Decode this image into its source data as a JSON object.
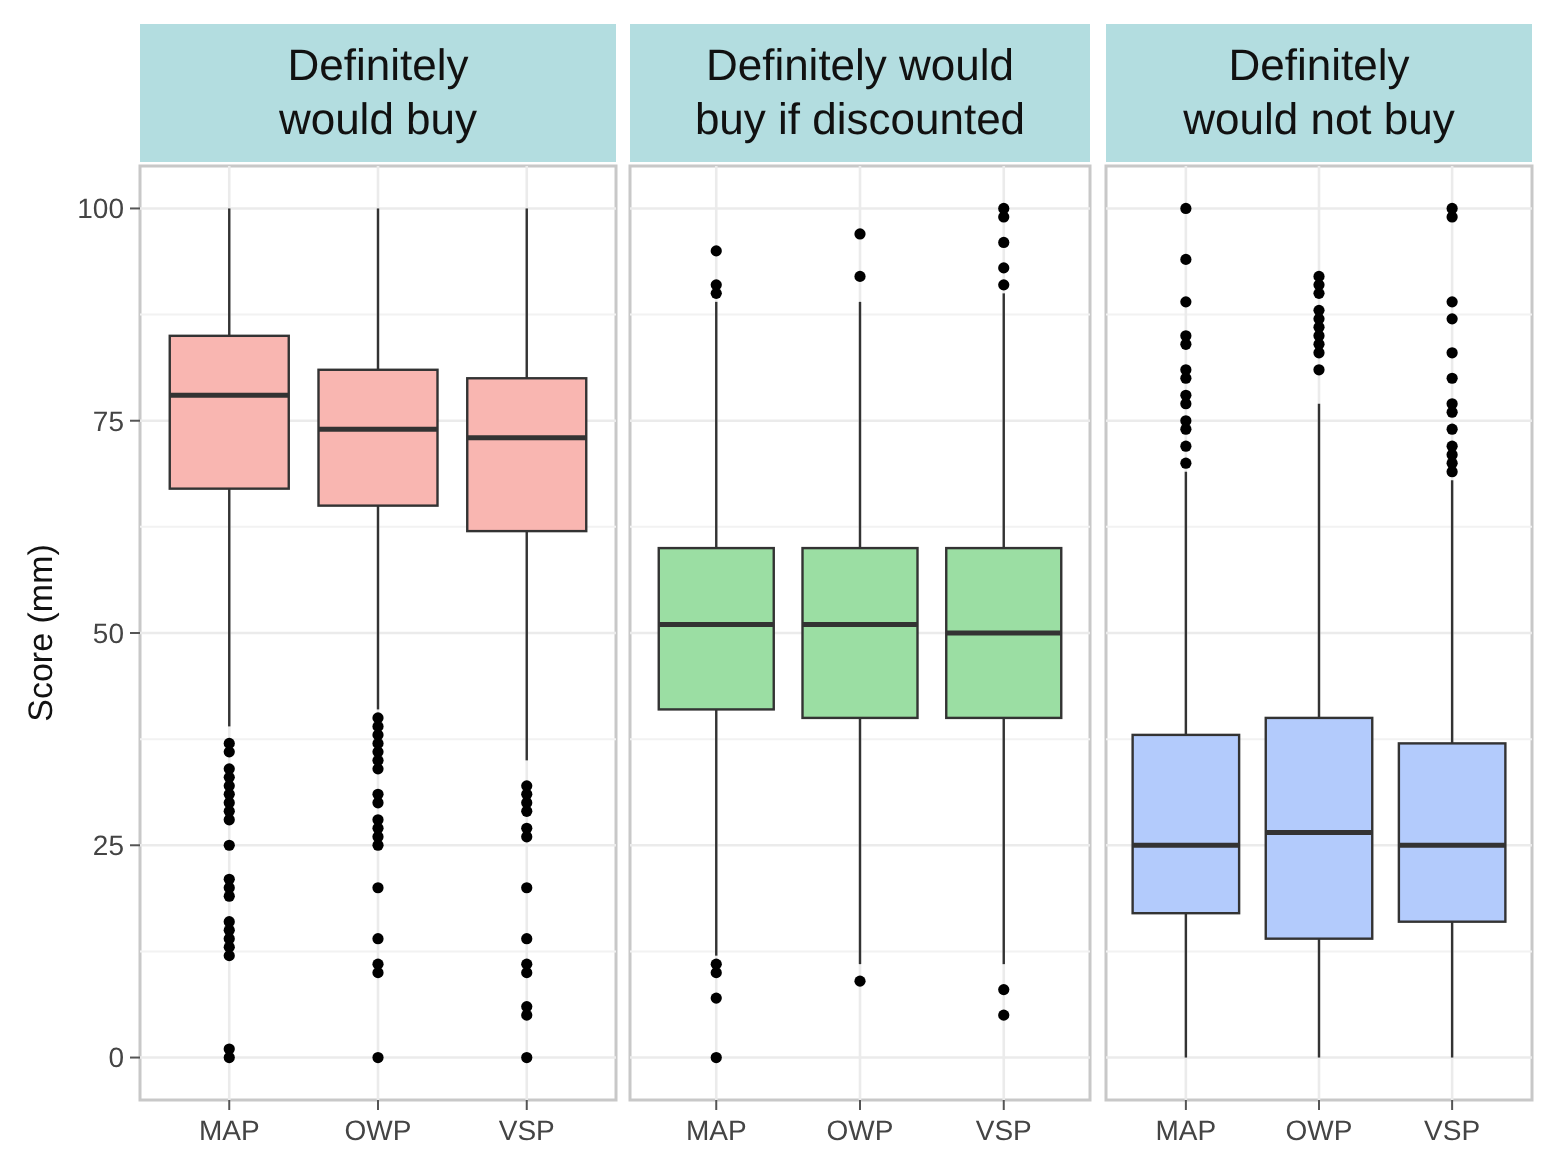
{
  "chart_data": [
    {
      "type": "box",
      "title": "Definitely\nwould buy",
      "ylabel": "Score (mm)",
      "categories": [
        "MAP",
        "OWP",
        "VSP"
      ],
      "ylim": [
        -5,
        105
      ],
      "yticks": [
        0,
        25,
        50,
        75,
        100
      ],
      "grid": true,
      "series": [
        {
          "color": "#f9b6b1",
          "boxes": [
            {
              "low": 39,
              "q1": 67,
              "median": 78,
              "q3": 85,
              "high": 100,
              "outliers": [
                37,
                36,
                34,
                33,
                32,
                31,
                30,
                29,
                28,
                25,
                21,
                20,
                19,
                16,
                15,
                14,
                13,
                12,
                1,
                0
              ]
            },
            {
              "low": 41,
              "q1": 65,
              "median": 74,
              "q3": 81,
              "high": 100,
              "outliers": [
                40,
                39,
                38,
                37,
                36,
                35,
                34,
                31,
                30,
                28,
                27,
                26,
                25,
                20,
                14,
                11,
                10,
                0
              ]
            },
            {
              "low": 35,
              "q1": 62,
              "median": 73,
              "q3": 80,
              "high": 100,
              "outliers": [
                32,
                31,
                30,
                29,
                27,
                26,
                20,
                14,
                11,
                10,
                6,
                5,
                0
              ]
            }
          ]
        }
      ]
    },
    {
      "type": "box",
      "title": "Definitely would\nbuy if discounted",
      "categories": [
        "MAP",
        "OWP",
        "VSP"
      ],
      "ylim": [
        -5,
        105
      ],
      "yticks": [
        0,
        25,
        50,
        75,
        100
      ],
      "grid": true,
      "tick_labels": "x",
      "series": [
        {
          "color": "#9bdea3",
          "boxes": [
            {
              "low": 12,
              "q1": 41,
              "median": 51,
              "q3": 60,
              "high": 89,
              "outliers": [
                95,
                91,
                90,
                11,
                10,
                7,
                0
              ]
            },
            {
              "low": 11,
              "q1": 40,
              "median": 51,
              "q3": 60,
              "high": 89,
              "outliers": [
                97,
                92,
                9
              ]
            },
            {
              "low": 11,
              "q1": 40,
              "median": 50,
              "q3": 60,
              "high": 90,
              "outliers": [
                100,
                99,
                96,
                93,
                91,
                8,
                5
              ]
            }
          ]
        }
      ]
    },
    {
      "type": "box",
      "title": "Definitely\nwould not buy",
      "categories": [
        "MAP",
        "OWP",
        "VSP"
      ],
      "ylim": [
        -5,
        105
      ],
      "yticks": [
        0,
        25,
        50,
        75,
        100
      ],
      "grid": true,
      "tick_labels": "x",
      "series": [
        {
          "color": "#b3cbfc",
          "boxes": [
            {
              "low": 0,
              "q1": 17,
              "median": 25,
              "q3": 38,
              "high": 69,
              "outliers": [
                100,
                94,
                89,
                85,
                84,
                81,
                80,
                78,
                77,
                75,
                74,
                72,
                70
              ]
            },
            {
              "low": 0,
              "q1": 14,
              "median": 26.5,
              "q3": 40,
              "high": 77,
              "outliers": [
                92,
                91,
                90,
                88,
                87,
                86,
                85,
                84,
                83,
                81
              ]
            },
            {
              "low": 0,
              "q1": 16,
              "median": 25,
              "q3": 37,
              "high": 68,
              "outliers": [
                100,
                99,
                89,
                87,
                83,
                80,
                77,
                76,
                74,
                72,
                71,
                70,
                69
              ]
            }
          ]
        }
      ]
    }
  ]
}
